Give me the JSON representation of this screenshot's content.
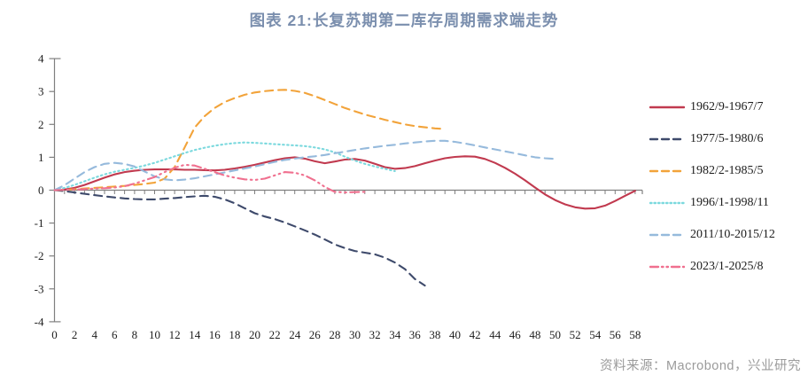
{
  "title": {
    "text": "图表 21:长复苏期第二库存周期需求端走势"
  },
  "source": {
    "text": "资料来源：Macrobond，兴业研究"
  },
  "colors": {
    "title": "#7b8fae",
    "source_text": "#9b9b9b",
    "axis": "#7f7f7f",
    "red": "#c13a4f",
    "navy": "#3e4a6b",
    "orange": "#f2a33a",
    "cyan": "#7cd9de",
    "lightblue": "#96badc",
    "pink": "#f0708f"
  },
  "chart_data": {
    "type": "line",
    "title": "图表 21:长复苏期第二库存周期需求端走势",
    "xlabel": "",
    "ylabel": "",
    "xlim": [
      0,
      59
    ],
    "ylim": [
      -4,
      4
    ],
    "y_ticks": [
      -4,
      -3,
      -2,
      -1,
      0,
      1,
      2,
      3,
      4
    ],
    "x_tick_step": 2,
    "x_tick_max": 58,
    "grid": false,
    "legend_position": "right",
    "x_start": 0,
    "x_step": 1,
    "series": [
      {
        "name": "1962/9-1967/7",
        "color": "#c13a4f",
        "style": "solid",
        "values": [
          0,
          0.02,
          0.07,
          0.16,
          0.27,
          0.38,
          0.48,
          0.55,
          0.59,
          0.62,
          0.63,
          0.63,
          0.63,
          0.62,
          0.62,
          0.61,
          0.6,
          0.62,
          0.66,
          0.71,
          0.77,
          0.84,
          0.91,
          0.97,
          1.0,
          0.96,
          0.88,
          0.82,
          0.87,
          0.93,
          0.95,
          0.9,
          0.8,
          0.7,
          0.65,
          0.67,
          0.73,
          0.82,
          0.9,
          0.97,
          1.01,
          1.03,
          1.02,
          0.95,
          0.83,
          0.68,
          0.5,
          0.3,
          0.08,
          -0.13,
          -0.3,
          -0.43,
          -0.52,
          -0.56,
          -0.55,
          -0.47,
          -0.33,
          -0.17,
          -0.02
        ]
      },
      {
        "name": "1977/5-1980/6",
        "color": "#3e4a6b",
        "style": "dashed",
        "values": [
          0,
          -0.03,
          -0.07,
          -0.11,
          -0.15,
          -0.19,
          -0.22,
          -0.25,
          -0.27,
          -0.28,
          -0.28,
          -0.26,
          -0.24,
          -0.21,
          -0.19,
          -0.17,
          -0.2,
          -0.28,
          -0.4,
          -0.55,
          -0.7,
          -0.8,
          -0.88,
          -0.98,
          -1.1,
          -1.22,
          -1.35,
          -1.5,
          -1.65,
          -1.76,
          -1.85,
          -1.9,
          -1.95,
          -2.05,
          -2.2,
          -2.4,
          -2.7,
          -2.9
        ]
      },
      {
        "name": "1982/2-1985/5",
        "color": "#f2a33a",
        "style": "dashed",
        "values": [
          0,
          0.01,
          0.03,
          0.05,
          0.07,
          0.09,
          0.11,
          0.13,
          0.16,
          0.19,
          0.23,
          0.35,
          0.7,
          1.3,
          1.9,
          2.25,
          2.5,
          2.68,
          2.8,
          2.9,
          2.97,
          3.01,
          3.04,
          3.05,
          3.02,
          2.96,
          2.86,
          2.74,
          2.62,
          2.5,
          2.4,
          2.3,
          2.22,
          2.14,
          2.07,
          2.0,
          1.95,
          1.91,
          1.88,
          1.86
        ]
      },
      {
        "name": "1996/1-1998/11",
        "color": "#7cd9de",
        "style": "dotted",
        "values": [
          0,
          0.07,
          0.16,
          0.27,
          0.38,
          0.48,
          0.56,
          0.62,
          0.68,
          0.75,
          0.83,
          0.93,
          1.03,
          1.13,
          1.22,
          1.29,
          1.35,
          1.4,
          1.43,
          1.45,
          1.44,
          1.42,
          1.4,
          1.38,
          1.36,
          1.34,
          1.3,
          1.24,
          1.15,
          1.02,
          0.9,
          0.8,
          0.72,
          0.65,
          0.58
        ]
      },
      {
        "name": "2011/10-2015/12",
        "color": "#96badc",
        "style": "dashed",
        "values": [
          0,
          0.15,
          0.35,
          0.55,
          0.7,
          0.8,
          0.83,
          0.8,
          0.72,
          0.57,
          0.42,
          0.33,
          0.3,
          0.32,
          0.36,
          0.42,
          0.48,
          0.54,
          0.6,
          0.66,
          0.72,
          0.79,
          0.86,
          0.92,
          0.96,
          1.0,
          1.03,
          1.07,
          1.12,
          1.17,
          1.22,
          1.27,
          1.31,
          1.35,
          1.38,
          1.42,
          1.45,
          1.48,
          1.5,
          1.5,
          1.47,
          1.42,
          1.36,
          1.3,
          1.24,
          1.18,
          1.12,
          1.06,
          1.0,
          0.97,
          0.95
        ]
      },
      {
        "name": "2023/1-2025/8",
        "color": "#f0708f",
        "style": "dashdot",
        "values": [
          0,
          0.01,
          0.02,
          0.03,
          0.05,
          0.06,
          0.08,
          0.12,
          0.2,
          0.3,
          0.4,
          0.55,
          0.68,
          0.77,
          0.75,
          0.65,
          0.55,
          0.45,
          0.38,
          0.33,
          0.31,
          0.35,
          0.45,
          0.55,
          0.53,
          0.45,
          0.3,
          0.1,
          -0.05,
          -0.07,
          -0.06,
          -0.05
        ]
      }
    ]
  }
}
